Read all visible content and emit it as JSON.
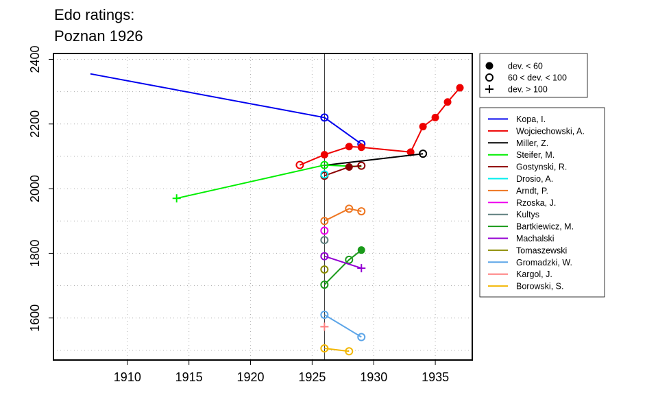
{
  "chart_data": {
    "type": "line",
    "title": [
      "Edo ratings:",
      "Poznan 1926"
    ],
    "xlabel": "",
    "ylabel": "",
    "xlim": [
      1904.0,
      1938.0
    ],
    "ylim": [
      1470,
      2418
    ],
    "x_ticks": [
      1910,
      1915,
      1920,
      1925,
      1930,
      1935
    ],
    "y_ticks": [
      1600,
      1800,
      2000,
      2200,
      2400
    ],
    "grid": true,
    "event_marker_x": 1926,
    "marker_legend": {
      "placement": "top-right",
      "items": [
        {
          "symbol": "filled",
          "label": "dev. < 60"
        },
        {
          "symbol": "open",
          "label": "60 < dev. < 100"
        },
        {
          "symbol": "plus",
          "label": "dev. > 100"
        }
      ]
    },
    "series_legend_placement": "right",
    "series": [
      {
        "name": "Kopa, I.",
        "color": "#0000EE",
        "points": [
          [
            1907,
            2355,
            "none"
          ],
          [
            1926,
            2220,
            "open"
          ],
          [
            1929,
            2138,
            "open"
          ]
        ]
      },
      {
        "name": "Wojciechowski, A.",
        "color": "#EE0000",
        "points": [
          [
            1924,
            2073,
            "open"
          ],
          [
            1926,
            2105,
            "filled"
          ],
          [
            1928,
            2130,
            "filled"
          ],
          [
            1929,
            2128,
            "filled"
          ],
          [
            1933,
            2113,
            "filled"
          ],
          [
            1934,
            2192,
            "filled"
          ],
          [
            1935,
            2220,
            "filled"
          ],
          [
            1936,
            2268,
            "filled"
          ],
          [
            1937,
            2312,
            "filled"
          ]
        ]
      },
      {
        "name": "Miller, Z.",
        "color": "#000000",
        "points": [
          [
            1926,
            2072,
            "none"
          ],
          [
            1934,
            2108,
            "open"
          ]
        ]
      },
      {
        "name": "Steifer, M.",
        "color": "#00EE00",
        "points": [
          [
            1914,
            1970,
            "plus"
          ],
          [
            1926,
            2073,
            "open"
          ],
          [
            1929,
            2068,
            "none"
          ]
        ]
      },
      {
        "name": "Gostynski, R.",
        "color": "#8B0000",
        "points": [
          [
            1926,
            2040,
            "open"
          ],
          [
            1928,
            2067,
            "filled"
          ],
          [
            1929,
            2071,
            "open"
          ]
        ]
      },
      {
        "name": "Drosio, A.",
        "color": "#00EEEE",
        "points": [
          [
            1926,
            2044,
            "open"
          ]
        ]
      },
      {
        "name": "Arndt, P.",
        "color": "#EE7621",
        "points": [
          [
            1926,
            1900,
            "open"
          ],
          [
            1928,
            1938,
            "open"
          ],
          [
            1929,
            1930,
            "open"
          ]
        ]
      },
      {
        "name": "Rzoska, J.",
        "color": "#EE00EE",
        "points": [
          [
            1926,
            1870,
            "open"
          ]
        ]
      },
      {
        "name": "Kultys",
        "color": "#5F7F7F",
        "points": [
          [
            1926,
            1841,
            "open"
          ]
        ]
      },
      {
        "name": "Bartkiewicz, M.",
        "color": "#1A9A1A",
        "points": [
          [
            1926,
            1703,
            "open"
          ],
          [
            1928,
            1780,
            "open"
          ],
          [
            1929,
            1810,
            "filled"
          ]
        ]
      },
      {
        "name": "Machalski",
        "color": "#9400D3",
        "points": [
          [
            1926,
            1791,
            "open"
          ],
          [
            1929,
            1754,
            "plus"
          ]
        ]
      },
      {
        "name": "Tomaszewski",
        "color": "#8B8B00",
        "points": [
          [
            1926,
            1750,
            "open"
          ]
        ]
      },
      {
        "name": "Gromadzki, W.",
        "color": "#5CA5E8",
        "points": [
          [
            1926,
            1610,
            "open"
          ],
          [
            1929,
            1541,
            "open"
          ]
        ]
      },
      {
        "name": "Kargol, J.",
        "color": "#FF7F7F",
        "points": [
          [
            1926,
            1573,
            "plus"
          ]
        ]
      },
      {
        "name": "Borowski, S.",
        "color": "#F2B705",
        "points": [
          [
            1926,
            1506,
            "open"
          ],
          [
            1928,
            1497,
            "open"
          ]
        ]
      }
    ]
  }
}
